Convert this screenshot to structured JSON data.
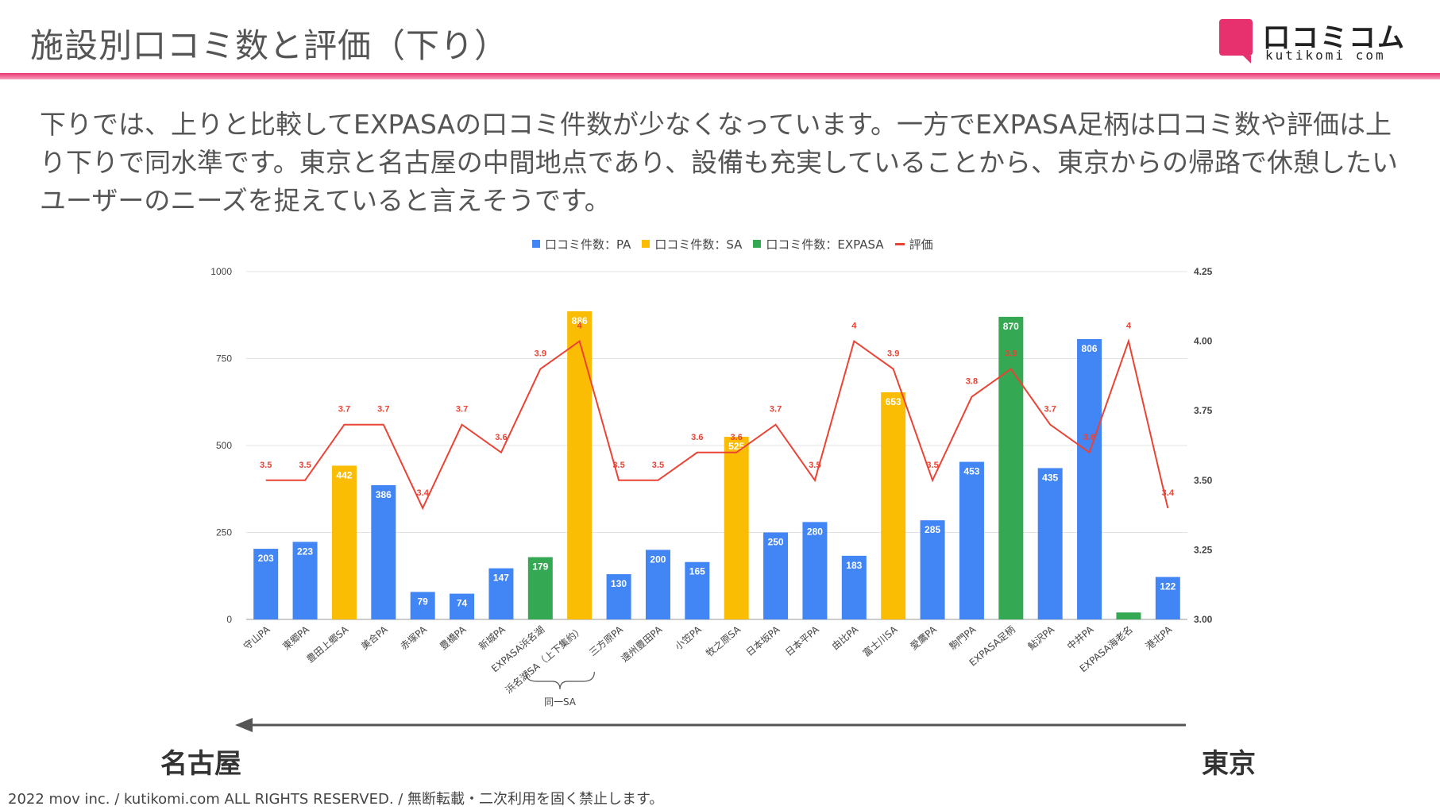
{
  "header": {
    "title": "施設別口コミ数と評価（下り）",
    "logo_text": "口コミコム",
    "logo_sub": "kutikomi com",
    "accent_color": "#e6316e"
  },
  "lead_text": "下りでは、上りと比較してEXPASAの口コミ件数が少なくなっています。一方でEXPASA足柄は口コミ数や評価は上り下りで同水準です。東京と名古屋の中間地点であり、設備も充実していることから、東京からの帰路で休憩したいユーザーのニーズを捉えていると言えそうです。",
  "legend": [
    {
      "label": "口コミ件数：PA",
      "color": "#4285f4",
      "kind": "bar"
    },
    {
      "label": "口コミ件数：SA",
      "color": "#fbbc04",
      "kind": "bar"
    },
    {
      "label": "口コミ件数：EXPASA",
      "color": "#34a853",
      "kind": "bar"
    },
    {
      "label": "評価",
      "color": "#ea4335",
      "kind": "line"
    }
  ],
  "chart_data": {
    "type": "bar",
    "categories": [
      "守山PA",
      "東郷PA",
      "豊田上郷SA",
      "美合PA",
      "赤塚PA",
      "豊橋PA",
      "新城PA",
      "EXPASA浜名湖",
      "浜名湖SA（上下集約）",
      "三方原PA",
      "遠州豊田PA",
      "小笠PA",
      "牧之原SA",
      "日本坂PA",
      "日本平PA",
      "由比PA",
      "富士川SA",
      "愛鷹PA",
      "駒門PA",
      "EXPASA足柄",
      "鮎沢PA",
      "中井PA",
      "EXPASA海老名",
      "港北PA"
    ],
    "category_types": [
      "PA",
      "PA",
      "SA",
      "PA",
      "PA",
      "PA",
      "PA",
      "EXPASA",
      "SA",
      "PA",
      "PA",
      "PA",
      "SA",
      "PA",
      "PA",
      "PA",
      "SA",
      "PA",
      "PA",
      "EXPASA",
      "PA",
      "PA",
      "EXPASA",
      "PA"
    ],
    "series": [
      {
        "name": "口コミ件数",
        "axis": "left",
        "values": [
          203,
          223,
          442,
          386,
          79,
          74,
          147,
          179,
          886,
          130,
          200,
          165,
          525,
          250,
          280,
          183,
          653,
          285,
          453,
          870,
          435,
          806,
          20,
          122
        ],
        "labels": [
          "203",
          "223",
          "442",
          "386",
          "79",
          "74",
          "147",
          "179",
          "886",
          "130",
          "200",
          "165",
          "525",
          "250",
          "280",
          "183",
          "653",
          "285",
          "453",
          "870",
          "435",
          "806",
          "",
          "122"
        ]
      },
      {
        "name": "評価",
        "axis": "right",
        "values": [
          3.5,
          3.5,
          3.7,
          3.7,
          3.4,
          3.7,
          3.6,
          3.9,
          4.0,
          3.5,
          3.5,
          3.6,
          3.6,
          3.7,
          3.5,
          4.0,
          3.9,
          3.5,
          3.8,
          3.9,
          3.7,
          3.6,
          4.0,
          3.4
        ],
        "labels": [
          "3.5",
          "3.5",
          "3.7",
          "3.7",
          "3.4",
          "3.7",
          "3.6",
          "3.9",
          "4",
          "3.5",
          "3.5",
          "3.6",
          "3.6",
          "3.7",
          "3.5",
          "4",
          "3.9",
          "3.5",
          "3.8",
          "3.9",
          "3.7",
          "3.6",
          "4",
          "3.4"
        ]
      }
    ],
    "ylim_left": [
      0,
      1000
    ],
    "yticks_left": [
      "0",
      "250",
      "500",
      "750",
      "1000"
    ],
    "ylim_right": [
      3.0,
      4.25
    ],
    "yticks_right": [
      "3.00",
      "3.25",
      "3.50",
      "3.75",
      "4.00",
      "4.25"
    ],
    "grid": true,
    "legend_position": "top",
    "annotation_same_sa": "同一SA"
  },
  "direction": {
    "left_city": "名古屋",
    "right_city": "東京"
  },
  "footer": "2022 mov inc. / kutikomi.com ALL RIGHTS RESERVED. / 無断転載・二次利用を固く禁止します。"
}
